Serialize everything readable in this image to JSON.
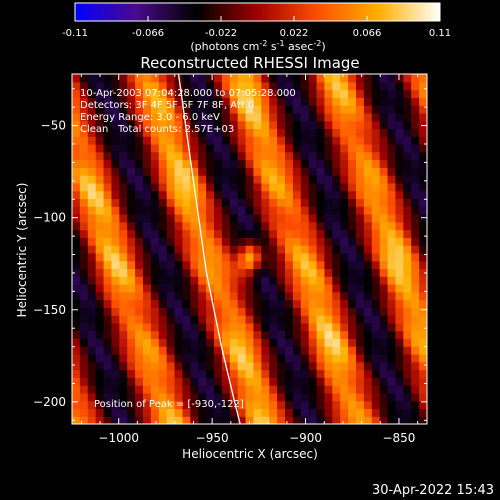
{
  "colorbar": {
    "ticks": [
      "-0.11",
      "-0.066",
      "-0.022",
      "0.022",
      "0.066",
      "0.11"
    ],
    "tick_values": [
      -0.11,
      -0.066,
      -0.022,
      0.022,
      0.066,
      0.11
    ],
    "range": [
      -0.11,
      0.11
    ],
    "units_prefix": "(photons cm",
    "units_exp1": "-2",
    "units_mid": " s",
    "units_exp2": "-1",
    "units_mid2": " asec",
    "units_exp3": "-2",
    "units_suffix": ")",
    "colors": [
      "#0000ff",
      "#4a0a8a",
      "#000000",
      "#a00000",
      "#ff5000",
      "#ffb000",
      "#ffffff"
    ]
  },
  "chart_data": {
    "type": "heatmap",
    "title": "Reconstructed RHESSI Image",
    "xlabel": "Heliocentric X (arcsec)",
    "ylabel": "Heliocentric Y (arcsec)",
    "xlim": [
      -1025,
      -835
    ],
    "ylim": [
      -212,
      -22
    ],
    "x_ticks": [
      -1000,
      -950,
      -900,
      -850
    ],
    "x_tick_labels": [
      "−1000",
      "−950",
      "−900",
      "−850"
    ],
    "y_ticks": [
      -50,
      -100,
      -150,
      -200
    ],
    "y_tick_labels": [
      "−50",
      "−100",
      "−150",
      "−200"
    ],
    "peak": [
      -930,
      -122
    ],
    "limb_curve": [
      [
        -968,
        -22
      ],
      [
        -960,
        -80
      ],
      [
        -953,
        -130
      ],
      [
        -945,
        -170
      ],
      [
        -938,
        -200
      ],
      [
        -935,
        -212
      ]
    ],
    "annotations": {
      "line1": "10-Apr-2003 07:04:28.000 to 07:05:28.000",
      "line2": "Detectors: 3F 4F 5F 6F 7F 8F, Att 0",
      "line3": "Energy Range: 3.0 - 6.0 keV",
      "line4_a": "Clean",
      "line4_b": "Total counts: 2.57E+03",
      "peak_text": "Position of Peak = [-930,-122]"
    }
  },
  "footer": {
    "timestamp": "30-Apr-2022 15:43"
  }
}
